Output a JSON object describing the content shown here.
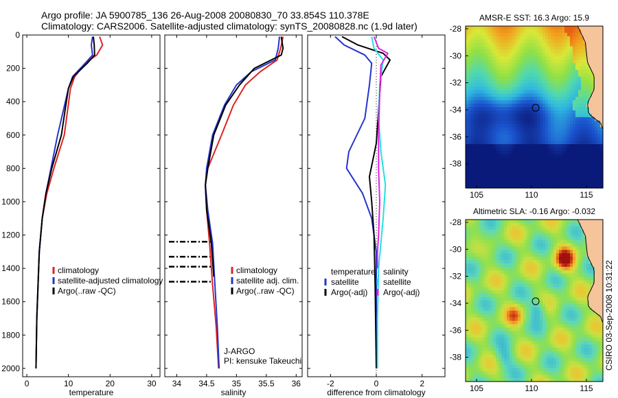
{
  "header": {
    "line1": "Argo profile: JA 5900785_136 26-Aug-2008 20080830_70 33.854S 110.378E",
    "line2": "Climatology: CARS2006. Satellite-adjusted climatology: synTS_20080828.nc (1.9d later)"
  },
  "side_note": "CSIRO 03-Sep-2008 10:31:22",
  "colors": {
    "red": "#dd2222",
    "blue": "#2233cc",
    "black": "#000000",
    "cyan": "#22e0e0",
    "magenta": "#e020e0",
    "land": "#f5c49a"
  },
  "chart_data": [
    {
      "type": "line",
      "xlabel": "temperature",
      "xlim": [
        -1,
        32
      ],
      "ylim": [
        2050,
        0
      ],
      "xticks": [
        0,
        10,
        20,
        30
      ],
      "yticks": [
        0,
        200,
        400,
        600,
        800,
        1000,
        1200,
        1400,
        1600,
        1800,
        2000
      ],
      "series": [
        {
          "name": "climatology",
          "color": "#dd2222",
          "points": [
            [
              17.5,
              10
            ],
            [
              18.2,
              60
            ],
            [
              16.8,
              120
            ],
            [
              14,
              170
            ],
            [
              11.5,
              250
            ],
            [
              10.5,
              320
            ],
            [
              9.8,
              450
            ],
            [
              9,
              600
            ],
            [
              6.5,
              800
            ],
            [
              4.8,
              950
            ],
            [
              3.7,
              1100
            ],
            [
              3,
              1300
            ],
            [
              2.7,
              1500
            ],
            [
              2.4,
              1700
            ],
            [
              2.2,
              2000
            ]
          ]
        },
        {
          "name": "satellite-adjusted climatology",
          "color": "#2233cc",
          "points": [
            [
              15.8,
              10
            ],
            [
              15.5,
              60
            ],
            [
              15.8,
              120
            ],
            [
              14,
              170
            ],
            [
              11,
              250
            ],
            [
              10,
              320
            ],
            [
              8.8,
              450
            ],
            [
              7.4,
              600
            ],
            [
              5.8,
              800
            ],
            [
              4.6,
              950
            ],
            [
              3.7,
              1100
            ],
            [
              3,
              1300
            ],
            [
              2.7,
              1500
            ],
            [
              2.4,
              1700
            ],
            [
              2.2,
              2000
            ]
          ]
        },
        {
          "name": "Argo(..raw -QC)",
          "color": "#000000",
          "points": [
            [
              16,
              10
            ],
            [
              16.2,
              60
            ],
            [
              16.3,
              120
            ],
            [
              14.5,
              170
            ],
            [
              11.2,
              250
            ],
            [
              10,
              320
            ],
            [
              9.2,
              450
            ],
            [
              8.3,
              600
            ],
            [
              6,
              800
            ],
            [
              4.6,
              950
            ],
            [
              3.7,
              1100
            ],
            [
              3,
              1300
            ],
            [
              2.7,
              1500
            ],
            [
              2.4,
              1700
            ],
            [
              2.2,
              2000
            ]
          ]
        }
      ],
      "legend": [
        {
          "label": "climatology",
          "color": "#dd2222"
        },
        {
          "label": "satellite-adjusted climatology",
          "color": "#2233cc"
        },
        {
          "label": "Argo(..raw -QC)",
          "color": "#000000"
        }
      ]
    },
    {
      "type": "line",
      "xlabel": "salinity",
      "xlim": [
        33.8,
        36.1
      ],
      "ylim": [
        2050,
        0
      ],
      "xticks": [
        34,
        34.5,
        35,
        35.5,
        36
      ],
      "yticks": [
        0,
        200,
        400,
        600,
        800,
        1000,
        1200,
        1400,
        1600,
        1800,
        2000
      ],
      "series": [
        {
          "name": "climatology",
          "color": "#dd2222",
          "points": [
            [
              35.78,
              10
            ],
            [
              35.74,
              80
            ],
            [
              35.68,
              150
            ],
            [
              35.4,
              220
            ],
            [
              35.15,
              300
            ],
            [
              34.95,
              420
            ],
            [
              34.75,
              600
            ],
            [
              34.52,
              800
            ],
            [
              34.48,
              900
            ],
            [
              34.5,
              1050
            ],
            [
              34.55,
              1250
            ],
            [
              34.6,
              1500
            ],
            [
              34.66,
              1750
            ],
            [
              34.7,
              2000
            ]
          ]
        },
        {
          "name": "satellite adj. clim.",
          "color": "#2233cc",
          "points": [
            [
              35.72,
              10
            ],
            [
              35.7,
              80
            ],
            [
              35.65,
              150
            ],
            [
              35.25,
              220
            ],
            [
              35,
              300
            ],
            [
              34.8,
              420
            ],
            [
              34.6,
              600
            ],
            [
              34.5,
              800
            ],
            [
              34.48,
              900
            ],
            [
              34.52,
              1050
            ],
            [
              34.6,
              1250
            ],
            [
              34.64,
              1500
            ],
            [
              34.68,
              1750
            ],
            [
              34.71,
              2000
            ]
          ]
        },
        {
          "name": "Argo(..raw -QC)",
          "color": "#000000",
          "points": [
            [
              35.75,
              10
            ],
            [
              35.78,
              80
            ],
            [
              35.75,
              120
            ],
            [
              35.3,
              200
            ],
            [
              35.05,
              300
            ],
            [
              34.82,
              420
            ],
            [
              34.62,
              600
            ],
            [
              34.52,
              800
            ],
            [
              34.48,
              900
            ],
            [
              34.5,
              1050
            ],
            [
              34.58,
              1250
            ],
            [
              34.62,
              1450
            ]
          ]
        }
      ],
      "flagged_depths": [
        1240,
        1330,
        1390,
        1480
      ],
      "legend": [
        {
          "label": "climatology",
          "color": "#dd2222"
        },
        {
          "label": "satellite adj. clim.",
          "color": "#2233cc"
        },
        {
          "label": "Argo(..raw -QC)",
          "color": "#000000"
        }
      ],
      "annotation": [
        "J-ARGO",
        "PI: kensuke Takeuchi"
      ]
    },
    {
      "type": "line",
      "xlabel": "difference from climatology",
      "xlim": [
        -3,
        3
      ],
      "ylim": [
        2050,
        0
      ],
      "xticks": [
        -2,
        0,
        2
      ],
      "yticks": [
        0,
        200,
        400,
        600,
        800,
        1000,
        1200,
        1400,
        1600,
        1800,
        2000
      ],
      "zero_line": true,
      "series": [
        {
          "name": "temperature satellite",
          "color": "#2233cc",
          "points": [
            [
              -1.8,
              10
            ],
            [
              -1.4,
              60
            ],
            [
              -0.5,
              120
            ],
            [
              -0.2,
              170
            ],
            [
              -0.3,
              300
            ],
            [
              -0.5,
              500
            ],
            [
              -1.2,
              700
            ],
            [
              -1.3,
              800
            ],
            [
              -0.6,
              950
            ],
            [
              -0.2,
              1100
            ],
            [
              0,
              1300
            ],
            [
              0,
              1600
            ],
            [
              0,
              2000
            ]
          ]
        },
        {
          "name": "temperature Argo(-adj)",
          "color": "#000000",
          "points": [
            [
              -1.5,
              10
            ],
            [
              -0.8,
              60
            ],
            [
              0.3,
              110
            ],
            [
              0.6,
              150
            ],
            [
              0.2,
              250
            ],
            [
              0.1,
              450
            ],
            [
              0,
              650
            ],
            [
              -0.3,
              850
            ],
            [
              -0.2,
              1000
            ],
            [
              -0.1,
              1200
            ],
            [
              -0.05,
              1500
            ],
            [
              0,
              2000
            ]
          ]
        },
        {
          "name": "salinity satellite",
          "color": "#22e0e0",
          "points": [
            [
              -0.2,
              10
            ],
            [
              -0.1,
              80
            ],
            [
              0.3,
              150
            ],
            [
              0.15,
              300
            ],
            [
              0.1,
              500
            ],
            [
              0.2,
              700
            ],
            [
              0.4,
              900
            ],
            [
              0.3,
              1100
            ],
            [
              0.1,
              1400
            ],
            [
              0.05,
              1700
            ],
            [
              0.05,
              2000
            ]
          ]
        },
        {
          "name": "salinity Argo(-adj)",
          "color": "#e020e0",
          "points": [
            [
              -0.1,
              10
            ],
            [
              0.1,
              80
            ],
            [
              0.5,
              110
            ],
            [
              0.2,
              180
            ],
            [
              0.15,
              350
            ],
            [
              0.1,
              600
            ],
            [
              0.1,
              800
            ],
            [
              0.15,
              1000
            ],
            [
              0.1,
              1200
            ],
            [
              0.05,
              1300
            ],
            [
              0.05,
              1400
            ]
          ]
        }
      ],
      "legend": [
        {
          "label": "temperature",
          "color": ""
        },
        {
          "label": "satellite",
          "color": "#2233cc"
        },
        {
          "label": "Argo(-adj)",
          "color": "#000000"
        },
        {
          "label": "salinity",
          "color": ""
        },
        {
          "label": "satellite",
          "color": "#22e0e0"
        },
        {
          "label": "Argo(-adj)",
          "color": "#e020e0"
        }
      ]
    },
    {
      "type": "heatmap",
      "title": "AMSR-E SST: 16.3 Argo: 15.9",
      "xlim": [
        104,
        116.5
      ],
      "ylim": [
        -39.8,
        -27.8
      ],
      "xticks": [
        105,
        110,
        115
      ],
      "yticks": [
        -28,
        -30,
        -32,
        -34,
        -36,
        -38
      ],
      "profile_location": [
        110.378,
        -33.854
      ]
    },
    {
      "type": "heatmap",
      "title": "Altimetric SLA: -0.16 Argo: -0.032",
      "xlim": [
        104,
        116.5
      ],
      "ylim": [
        -39.8,
        -27.8
      ],
      "xticks": [
        105,
        110,
        115
      ],
      "yticks": [
        -28,
        -30,
        -32,
        -34,
        -36,
        -38
      ],
      "profile_location": [
        110.378,
        -33.854
      ]
    }
  ]
}
